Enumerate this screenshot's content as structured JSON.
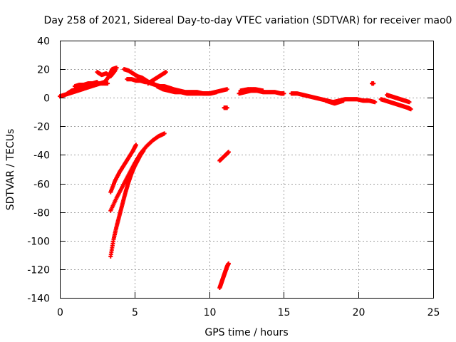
{
  "chart_data": {
    "type": "scatter",
    "title": "Day 258 of 2021, Sidereal Day-to-day VTEC variation (SDTVAR) for receiver mao0",
    "xlabel": "GPS time / hours",
    "ylabel": "SDTVAR / TECUs",
    "xlim": [
      0,
      25
    ],
    "ylim": [
      -140,
      40
    ],
    "xticks": [
      "0",
      "5",
      "10",
      "15",
      "20",
      "25"
    ],
    "yticks": [
      "40",
      "20",
      "0",
      "-20",
      "-40",
      "-60",
      "-80",
      "-100",
      "-120",
      "-140"
    ],
    "grid": true,
    "marker": "+",
    "color": "#ff0000",
    "series": [
      {
        "name": "track-a",
        "x": [
          0,
          0.3,
          0.6,
          0.9,
          1.2,
          1.5,
          1.8,
          2.1,
          2.4,
          2.7,
          3.0,
          3.3,
          3.5,
          3.8
        ],
        "y": [
          1,
          2,
          3,
          4,
          5,
          6,
          7,
          8,
          9,
          10,
          11,
          15,
          20,
          21
        ]
      },
      {
        "name": "track-b",
        "x": [
          0.5,
          0.8,
          1.1,
          1.4,
          1.7,
          2.0,
          2.3,
          2.6,
          2.9,
          3.2
        ],
        "y": [
          3,
          5,
          6,
          7,
          8,
          9,
          9,
          10,
          10,
          10
        ]
      },
      {
        "name": "track-c",
        "x": [
          1.0,
          1.3,
          1.6,
          1.9,
          2.2,
          2.5
        ],
        "y": [
          8,
          9,
          9,
          10,
          10,
          11
        ]
      },
      {
        "name": "track-d",
        "x": [
          2.5,
          2.8,
          3.1,
          3.4,
          3.7
        ],
        "y": [
          18,
          16,
          17,
          15,
          19
        ]
      },
      {
        "name": "track-e",
        "x": [
          4.3,
          4.6,
          4.9,
          5.2,
          5.5,
          5.8,
          6.1,
          6.4,
          6.7,
          7.0,
          7.3,
          7.6,
          8.0,
          8.4,
          8.8,
          9.2,
          9.6,
          10.0,
          10.4,
          10.8,
          11.2
        ],
        "y": [
          20,
          19,
          17,
          15,
          14,
          12,
          10,
          9,
          8,
          8,
          7,
          6,
          5,
          4,
          4,
          4,
          3,
          3,
          4,
          5,
          6
        ]
      },
      {
        "name": "track-f",
        "x": [
          4.5,
          4.8,
          5.1,
          5.4,
          5.7,
          6.0,
          6.3
        ],
        "y": [
          13,
          13,
          12,
          12,
          11,
          11,
          10
        ]
      },
      {
        "name": "track-g",
        "x": [
          5.9,
          6.2,
          6.5,
          6.8,
          7.1
        ],
        "y": [
          10,
          12,
          14,
          16,
          18
        ]
      },
      {
        "name": "track-h",
        "x": [
          6.5,
          6.9,
          7.3,
          7.7,
          8.1,
          8.5,
          8.9,
          9.3,
          9.7,
          10.1,
          10.5
        ],
        "y": [
          8,
          6,
          5,
          4,
          4,
          3,
          3,
          3,
          3,
          3,
          4
        ]
      },
      {
        "name": "track-i",
        "x": [
          12.0,
          12.4,
          12.8,
          13.2,
          13.6,
          14.0,
          14.4,
          14.8,
          15.0
        ],
        "y": [
          3,
          4,
          5,
          5,
          4,
          4,
          4,
          3,
          3
        ]
      },
      {
        "name": "track-j",
        "x": [
          12.1,
          12.6,
          13.1,
          13.6
        ],
        "y": [
          5,
          6,
          6,
          5
        ]
      },
      {
        "name": "track-k",
        "x": [
          15.5,
          15.9,
          16.3,
          16.7,
          17.1,
          17.5,
          17.9,
          18.3,
          18.7,
          19.1,
          19.5,
          19.9,
          20.3,
          20.7,
          21.1
        ],
        "y": [
          3,
          3,
          2,
          1,
          0,
          -1,
          -2,
          -3,
          -2,
          -1,
          -1,
          -1,
          -2,
          -2,
          -3
        ]
      },
      {
        "name": "track-l",
        "x": [
          17.8,
          18.1,
          18.4,
          18.7,
          19.0
        ],
        "y": [
          -2,
          -3,
          -4,
          -3,
          -2
        ]
      },
      {
        "name": "track-m",
        "x": [
          21.5,
          21.8,
          22.1,
          22.4,
          22.7,
          23.0,
          23.3,
          23.5
        ],
        "y": [
          -1,
          -2,
          -3,
          -4,
          -5,
          -6,
          -7,
          -8
        ]
      },
      {
        "name": "track-n",
        "x": [
          21.9,
          22.2,
          22.5,
          22.8,
          23.1,
          23.4
        ],
        "y": [
          2,
          1,
          0,
          -1,
          -2,
          -3
        ]
      },
      {
        "name": "track-o",
        "x": [
          20.9,
          21.0
        ],
        "y": [
          10,
          10
        ]
      },
      {
        "name": "track-p",
        "x": [
          11.0,
          11.2
        ],
        "y": [
          -7,
          -7
        ]
      },
      {
        "name": "track-q",
        "x": [
          3.4,
          3.7,
          4.0,
          4.3,
          4.6,
          4.9,
          5.1
        ],
        "y": [
          -66,
          -58,
          -52,
          -47,
          -42,
          -37,
          -33
        ]
      },
      {
        "name": "track-r",
        "x": [
          3.4,
          3.8,
          4.2,
          4.6,
          5.0,
          5.4,
          5.8,
          6.2,
          6.6,
          7.0
        ],
        "y": [
          -79,
          -70,
          -62,
          -54,
          -46,
          -39,
          -34,
          -30,
          -27,
          -25
        ]
      },
      {
        "name": "track-s",
        "x": [
          3.4,
          3.6,
          3.8,
          4.0,
          4.2,
          4.4,
          4.6,
          4.8,
          5.0,
          5.2,
          5.4,
          5.6
        ],
        "y": [
          -111,
          -99,
          -90,
          -82,
          -74,
          -66,
          -59,
          -53,
          -48,
          -44,
          -40,
          -37
        ]
      },
      {
        "name": "track-t",
        "x": [
          10.7,
          10.9,
          11.1,
          11.3
        ],
        "y": [
          -44,
          -42,
          -40,
          -38
        ]
      },
      {
        "name": "track-u",
        "x": [
          10.7,
          10.8,
          10.9,
          11.0,
          11.1,
          11.2,
          11.3
        ],
        "y": [
          -133,
          -130,
          -127,
          -124,
          -121,
          -118,
          -116
        ]
      }
    ]
  }
}
